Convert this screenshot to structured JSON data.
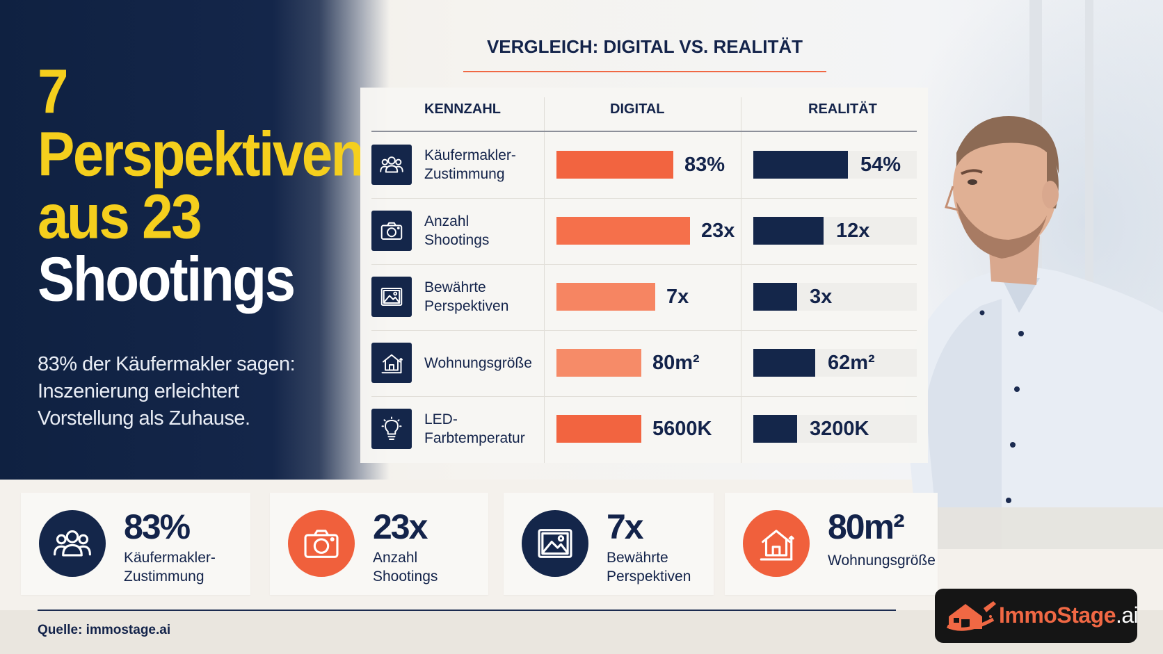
{
  "headline": {
    "line1": "7",
    "line2": "Perspektiven",
    "line3": "aus 23",
    "line4": "Shootings"
  },
  "subtext": "83% der Käufermakler sagen: Inszenierung erleichtert Vorstellung als Zuhause.",
  "table": {
    "title": "VERGLEICH: DIGITAL VS. REALITÄT",
    "headers": [
      "KENNZAHL",
      "DIGITAL",
      "REALITÄT"
    ]
  },
  "chart_data": {
    "type": "table",
    "title": "VERGLEICH: DIGITAL VS. REALITÄT",
    "columns": [
      "KENNZAHL",
      "DIGITAL",
      "REALITÄT"
    ],
    "rows": [
      {
        "label": "Käufermakler-Zustimmung",
        "icon": "users-icon",
        "digital_label": "83%",
        "reality_label": "54%",
        "digital_fill": 0.7,
        "reality_fill": 0.58
      },
      {
        "label": "Anzahl Shootings",
        "icon": "camera-icon",
        "digital_label": "23x",
        "reality_label": "12x",
        "digital_fill": 0.8,
        "reality_fill": 0.43
      },
      {
        "label": "Bewährte Perspektiven",
        "icon": "image-icon",
        "digital_label": "7x",
        "reality_label": "3x",
        "digital_fill": 0.59,
        "reality_fill": 0.27
      },
      {
        "label": "Wohnungsgröße",
        "icon": "house-icon",
        "digital_label": "80m²",
        "reality_label": "62m²",
        "digital_fill": 0.51,
        "reality_fill": 0.38
      },
      {
        "label": "LED-Farbtemperatur",
        "icon": "bulb-icon",
        "digital_label": "5600K",
        "reality_label": "3200K",
        "digital_fill": 0.51,
        "reality_fill": 0.27
      }
    ],
    "digital_colors": [
      "#f26440",
      "#f5704b",
      "#f68562",
      "#f68b68",
      "#f26440"
    ],
    "reality_color": "#14264a",
    "track_color": "#efeeeb"
  },
  "stats": [
    {
      "value": "83%",
      "label": "Käufermakler-Zustimmung",
      "icon": "users-icon",
      "color": "#14264a"
    },
    {
      "value": "23x",
      "label": "Anzahl Shootings",
      "icon": "camera-icon",
      "color": "#f0603c"
    },
    {
      "value": "7x",
      "label": "Bewährte Perspektiven",
      "icon": "image-icon",
      "color": "#14264a"
    },
    {
      "value": "80m²",
      "label": "Wohnungsgröße",
      "icon": "house-icon",
      "color": "#f0603c"
    }
  ],
  "footer": {
    "source": "Quelle: immostage.ai",
    "logo_main": "ImmoStage",
    "logo_suffix": ".ai"
  },
  "colors": {
    "navy": "#14264a",
    "accent": "#f06844",
    "yellow": "#f5cf1d"
  }
}
